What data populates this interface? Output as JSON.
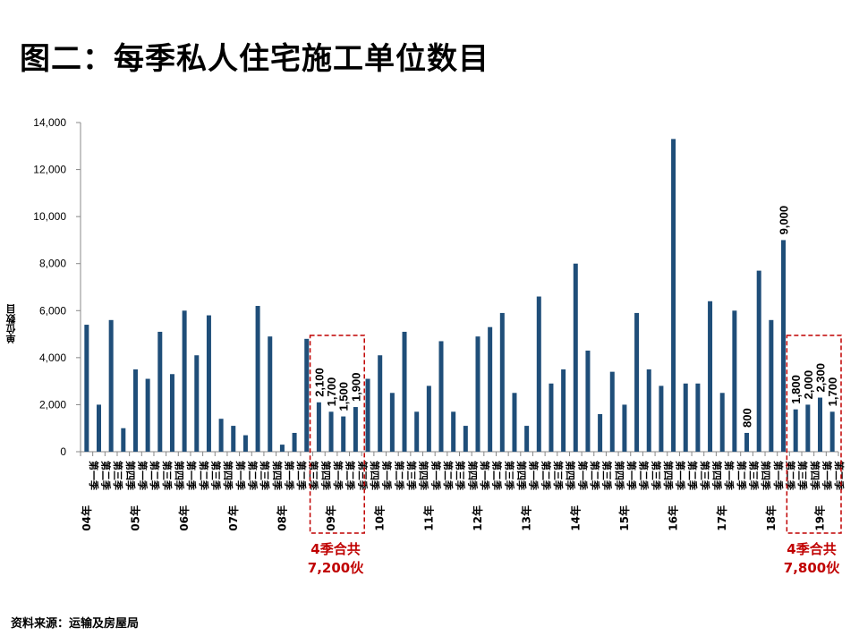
{
  "title": "图二：每季私人住宅施工单位数目",
  "source": "资料来源：运输及房屋局",
  "colors": {
    "bar": "#1f4e79",
    "bar_highlight": "#2e75b6",
    "callout": "#c00000"
  },
  "callouts": [
    {
      "line1": "4季合共",
      "line2": "7,200伙"
    },
    {
      "line1": "4季合共",
      "line2": "7,800伙"
    }
  ],
  "chart_data": {
    "type": "bar",
    "title": "图二：每季私人住宅施工单位数目",
    "ylabel": "单位数目",
    "xlabel": "",
    "ylim": [
      0,
      14000
    ],
    "yticks": [
      0,
      2000,
      4000,
      6000,
      8000,
      10000,
      12000,
      14000
    ],
    "ytick_labels": [
      "0",
      "2,000",
      "4,000",
      "6,000",
      "8,000",
      "10,000",
      "12,000",
      "14,000"
    ],
    "quarter_labels": [
      "第一季",
      "第二季",
      "第三季",
      "第四季"
    ],
    "year_labels": [
      "04年",
      "05年",
      "06年",
      "07年",
      "08年",
      "09年",
      "10年",
      "11年",
      "12年",
      "13年",
      "14年",
      "15年",
      "16年",
      "17年",
      "18年",
      "19年"
    ],
    "values": [
      5400,
      2000,
      5600,
      1000,
      3500,
      3100,
      5100,
      3300,
      6000,
      4100,
      5800,
      1400,
      1100,
      700,
      6200,
      4900,
      300,
      800,
      4800,
      2100,
      1700,
      1500,
      1900,
      3100,
      4100,
      2500,
      5100,
      1700,
      2800,
      4700,
      1700,
      1100,
      4900,
      5300,
      5900,
      2500,
      1100,
      6600,
      2900,
      3500,
      8000,
      4300,
      1600,
      3400,
      2000,
      5900,
      3500,
      2800,
      13300,
      2900,
      2900,
      6400,
      2500,
      6000,
      800,
      7700,
      5600,
      9000,
      1800,
      2000,
      2300,
      1700
    ],
    "data_labels": [
      {
        "index": 19,
        "text": "2,100"
      },
      {
        "index": 20,
        "text": "1,700"
      },
      {
        "index": 21,
        "text": "1,500"
      },
      {
        "index": 22,
        "text": "1,900"
      },
      {
        "index": 54,
        "text": "800"
      },
      {
        "index": 57,
        "text": "9,000"
      },
      {
        "index": 58,
        "text": "1,800"
      },
      {
        "index": 59,
        "text": "2,000"
      },
      {
        "index": 60,
        "text": "2,300"
      },
      {
        "index": 61,
        "text": "1,700"
      }
    ],
    "highlight_groups": [
      [
        19,
        22
      ],
      [
        58,
        61
      ]
    ],
    "grid": false,
    "legend": "none"
  }
}
